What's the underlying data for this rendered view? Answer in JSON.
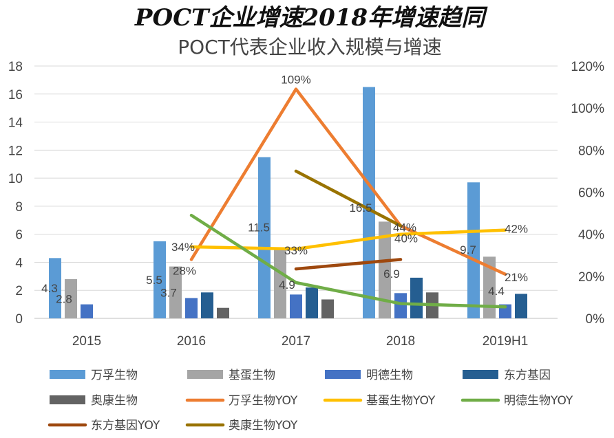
{
  "header": {
    "title": "POCT企业增速2018年增速趋同",
    "subtitle": "POCT代表企业收入规模与增速"
  },
  "chart_data": {
    "type": "bar",
    "categories": [
      "2015",
      "2016",
      "2017",
      "2018",
      "2019H1"
    ],
    "y_left": {
      "min": 0,
      "max": 18,
      "step": 2,
      "ticks": [
        "0",
        "2",
        "4",
        "6",
        "8",
        "10",
        "12",
        "14",
        "16",
        "18"
      ]
    },
    "y_right": {
      "min": 0,
      "max": 120,
      "step": 20,
      "ticks": [
        "0%",
        "20%",
        "40%",
        "60%",
        "80%",
        "100%",
        "120%"
      ]
    },
    "bar_series": [
      {
        "name": "万孚生物",
        "color": "#5b9bd5",
        "values": [
          4.3,
          5.5,
          11.5,
          16.5,
          9.7
        ],
        "labels": [
          "4.3",
          "5.5",
          "11.5",
          "16.5",
          "9.7"
        ]
      },
      {
        "name": "基蛋生物",
        "color": "#a5a5a5",
        "values": [
          2.8,
          3.7,
          4.9,
          6.9,
          4.4
        ],
        "labels": [
          "2.8",
          "3.7",
          "4.9",
          "6.9",
          "4.4"
        ]
      },
      {
        "name": "明德生物",
        "color": "#4472c4",
        "values": [
          1.0,
          1.45,
          1.7,
          1.8,
          1.0
        ],
        "labels": []
      },
      {
        "name": "东方基因",
        "color": "#255e91",
        "values": [
          null,
          1.85,
          2.2,
          2.9,
          1.75
        ],
        "labels": []
      },
      {
        "name": "奥康生物",
        "color": "#636363",
        "values": [
          null,
          0.75,
          1.35,
          1.85,
          null
        ],
        "labels": []
      }
    ],
    "line_series": [
      {
        "name": "万孚生物YOY",
        "color": "#ed7d31",
        "values": [
          null,
          28,
          109,
          44,
          21
        ],
        "labels": [
          "",
          "28%",
          "109%",
          "44%",
          "21%"
        ]
      },
      {
        "name": "基蛋生物YOY",
        "color": "#ffc000",
        "values": [
          null,
          34,
          33,
          40,
          42
        ],
        "labels": [
          "",
          "34%",
          "33%",
          "40%",
          "42%"
        ]
      },
      {
        "name": "明德生物YOY",
        "color": "#70ad47",
        "values": [
          null,
          49,
          17,
          7,
          5.5
        ],
        "labels": []
      },
      {
        "name": "东方基因YOY",
        "color": "#9e480e",
        "values": [
          null,
          null,
          23.5,
          28,
          null
        ],
        "labels": []
      },
      {
        "name": "奥康生物YOY",
        "color": "#997300",
        "values": [
          null,
          null,
          70,
          44,
          null
        ],
        "labels": []
      }
    ],
    "legend_position": "bottom",
    "grid": "horizontal"
  }
}
